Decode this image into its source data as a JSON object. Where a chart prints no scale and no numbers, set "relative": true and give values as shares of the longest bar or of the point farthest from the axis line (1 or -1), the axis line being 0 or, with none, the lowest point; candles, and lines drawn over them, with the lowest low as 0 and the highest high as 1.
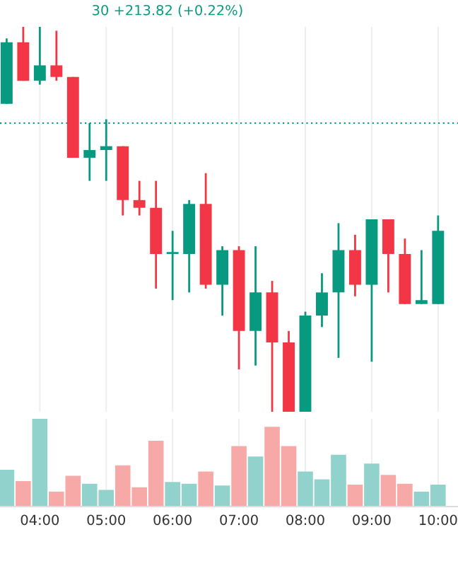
{
  "chart_data": [
    {
      "type": "candlestick",
      "relative": true,
      "x": [
        3.5,
        3.75,
        4.0,
        4.25,
        4.5,
        4.75,
        5.0,
        5.25,
        5.5,
        5.75,
        6.0,
        6.25,
        6.5,
        6.75,
        7.0,
        7.25,
        7.5,
        7.75,
        8.0,
        8.25,
        8.5,
        8.75,
        9.0,
        9.25,
        9.5,
        9.75,
        10.0
      ],
      "ohlc": [
        [
          0.8,
          0.97,
          0.8,
          0.96
        ],
        [
          0.96,
          1.0,
          0.86,
          0.86
        ],
        [
          0.86,
          1.0,
          0.85,
          0.9
        ],
        [
          0.9,
          0.99,
          0.86,
          0.87
        ],
        [
          0.87,
          0.87,
          0.66,
          0.66
        ],
        [
          0.66,
          0.75,
          0.6,
          0.68
        ],
        [
          0.68,
          0.76,
          0.6,
          0.69
        ],
        [
          0.69,
          0.69,
          0.51,
          0.55
        ],
        [
          0.55,
          0.6,
          0.51,
          0.53
        ],
        [
          0.53,
          0.6,
          0.32,
          0.41
        ],
        [
          0.41,
          0.47,
          0.29,
          0.415
        ],
        [
          0.41,
          0.55,
          0.31,
          0.54
        ],
        [
          0.54,
          0.62,
          0.32,
          0.33
        ],
        [
          0.33,
          0.43,
          0.25,
          0.42
        ],
        [
          0.42,
          0.43,
          0.11,
          0.21
        ],
        [
          0.21,
          0.43,
          0.12,
          0.31
        ],
        [
          0.31,
          0.34,
          0.0,
          0.18
        ],
        [
          0.18,
          0.21,
          0.0,
          0.0
        ],
        [
          0.0,
          0.26,
          0.0,
          0.25
        ],
        [
          0.25,
          0.36,
          0.22,
          0.31
        ],
        [
          0.31,
          0.49,
          0.14,
          0.42
        ],
        [
          0.42,
          0.46,
          0.3,
          0.33
        ],
        [
          0.33,
          0.5,
          0.13,
          0.5
        ],
        [
          0.5,
          0.5,
          0.31,
          0.41
        ],
        [
          0.41,
          0.45,
          0.28,
          0.28
        ],
        [
          0.28,
          0.42,
          0.28,
          0.29
        ],
        [
          0.28,
          0.51,
          0.28,
          0.47
        ]
      ],
      "colors": [
        "#089981",
        "#f23645",
        "#089981",
        "#f23645",
        "#f23645",
        "#089981",
        "#089981",
        "#f23645",
        "#f23645",
        "#f23645",
        "#089981",
        "#089981",
        "#f23645",
        "#089981",
        "#f23645",
        "#089981",
        "#f23645",
        "#f23645",
        "#089981",
        "#089981",
        "#089981",
        "#f23645",
        "#089981",
        "#f23645",
        "#f23645",
        "#089981",
        "#089981"
      ],
      "xlim": [
        3.4,
        10.3
      ],
      "tick_labels": false,
      "grid": "x",
      "ref_lines": [
        {
          "axis": "y",
          "value": 0.75,
          "line_style": "dotted",
          "color": "#089981"
        }
      ],
      "annotations": [
        "30 +213.82 (+0.22%)"
      ]
    },
    {
      "type": "bar",
      "relative": true,
      "x": [
        3.5,
        3.75,
        4.0,
        4.25,
        4.5,
        4.75,
        5.0,
        5.25,
        5.5,
        5.75,
        6.0,
        6.25,
        6.5,
        6.75,
        7.0,
        7.25,
        7.5,
        7.75,
        8.0,
        8.25,
        8.5,
        8.75,
        9.0,
        9.25,
        9.5,
        9.75,
        10.0
      ],
      "values": [
        0.42,
        0.29,
        1.0,
        0.17,
        0.35,
        0.26,
        0.19,
        0.47,
        0.22,
        0.75,
        0.28,
        0.26,
        0.4,
        0.24,
        0.69,
        0.57,
        0.91,
        0.69,
        0.4,
        0.31,
        0.59,
        0.25,
        0.49,
        0.36,
        0.26,
        0.17,
        0.25
      ],
      "colors": [
        "#92d2cc",
        "#f7a9a7",
        "#92d2cc",
        "#f7a9a7",
        "#f7a9a7",
        "#92d2cc",
        "#92d2cc",
        "#f7a9a7",
        "#f7a9a7",
        "#f7a9a7",
        "#92d2cc",
        "#92d2cc",
        "#f7a9a7",
        "#92d2cc",
        "#f7a9a7",
        "#92d2cc",
        "#f7a9a7",
        "#f7a9a7",
        "#92d2cc",
        "#92d2cc",
        "#92d2cc",
        "#f7a9a7",
        "#92d2cc",
        "#f7a9a7",
        "#f7a9a7",
        "#92d2cc",
        "#92d2cc"
      ],
      "xlim": [
        3.4,
        10.3
      ],
      "xticks": [
        {
          "value": 4,
          "label": "04:00"
        },
        {
          "value": 5,
          "label": "05:00"
        },
        {
          "value": 6,
          "label": "06:00"
        },
        {
          "value": 7,
          "label": "07:00"
        },
        {
          "value": 8,
          "label": "08:00"
        },
        {
          "value": 9,
          "label": "09:00"
        },
        {
          "value": 10,
          "label": "10:00"
        }
      ],
      "grid": "x"
    }
  ]
}
